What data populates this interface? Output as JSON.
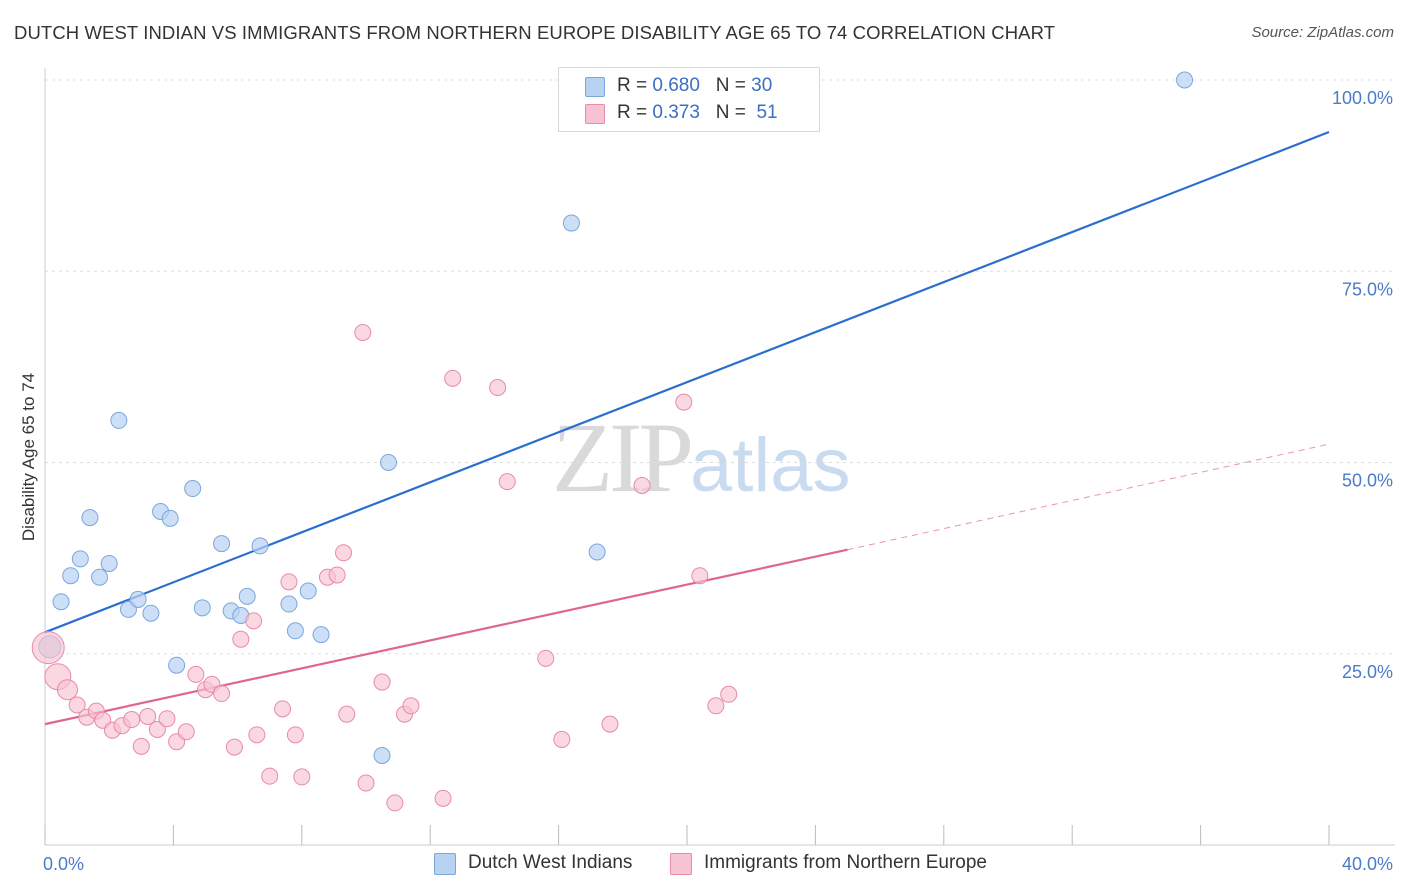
{
  "title": "DUTCH WEST INDIAN VS IMMIGRANTS FROM NORTHERN EUROPE DISABILITY AGE 65 TO 74 CORRELATION CHART",
  "source": "Source: ZipAtlas.com",
  "watermark": {
    "zip": "ZIP",
    "atlas": "atlas"
  },
  "legend": {
    "rows": [
      {
        "r_label": "R =",
        "r_value": "0.680",
        "n_label": "N =",
        "n_value": "30"
      },
      {
        "r_label": "R =",
        "r_value": "0.373",
        "n_label": "N =",
        "n_value": "51"
      }
    ]
  },
  "colors": {
    "blue_fill": "#b8d2f2",
    "blue_stroke": "#7aa6dd",
    "blue_line": "#2a6fcf",
    "pink_fill": "#f7c3d3",
    "pink_stroke": "#e88aa8",
    "pink_line": "#e0668f",
    "grid": "#dddddd"
  },
  "chart_data": {
    "type": "scatter",
    "title": "DUTCH WEST INDIAN VS IMMIGRANTS FROM NORTHERN EUROPE DISABILITY AGE 65 TO 74 CORRELATION CHART",
    "xlabel": "",
    "ylabel": "Disability Age 65 to 74",
    "xlim": [
      0,
      40
    ],
    "ylim": [
      0,
      100
    ],
    "x_tick_labels": [
      "0.0%",
      "40.0%"
    ],
    "y_ticks": [
      25,
      50,
      75,
      100
    ],
    "y_tick_labels": [
      "25.0%",
      "50.0%",
      "75.0%",
      "100.0%"
    ],
    "legend_position": "top-center",
    "series": [
      {
        "name": "Dutch West Indians",
        "r": 0.68,
        "n": 30,
        "trend": {
          "x0": 0,
          "y0": 27.8,
          "x1": 40,
          "y1": 93.2
        },
        "points": [
          [
            0.15,
            25.9
          ],
          [
            0.5,
            31.8
          ],
          [
            0.8,
            35.2
          ],
          [
            1.1,
            37.4
          ],
          [
            1.4,
            42.8
          ],
          [
            1.7,
            35.0
          ],
          [
            2.0,
            36.8
          ],
          [
            2.3,
            55.5
          ],
          [
            2.6,
            30.8
          ],
          [
            2.9,
            32.1
          ],
          [
            3.3,
            30.3
          ],
          [
            3.6,
            43.6
          ],
          [
            3.9,
            42.7
          ],
          [
            4.1,
            23.5
          ],
          [
            4.6,
            46.6
          ],
          [
            4.9,
            31.0
          ],
          [
            5.5,
            39.4
          ],
          [
            5.8,
            30.6
          ],
          [
            6.1,
            30.0
          ],
          [
            6.3,
            32.5
          ],
          [
            6.7,
            39.1
          ],
          [
            7.6,
            31.5
          ],
          [
            7.8,
            28.0
          ],
          [
            8.2,
            33.2
          ],
          [
            8.6,
            27.5
          ],
          [
            10.7,
            50.0
          ],
          [
            10.5,
            11.7
          ],
          [
            16.4,
            81.3
          ],
          [
            17.2,
            38.3
          ],
          [
            35.5,
            100.0
          ]
        ]
      },
      {
        "name": "Immigrants from Northern Europe",
        "r": 0.373,
        "n": 51,
        "trend": {
          "x0": 0,
          "y0": 15.8,
          "x1": 25,
          "y1": 38.6,
          "dash_x1": 40,
          "dash_y1": 52.4
        },
        "points": [
          [
            0.1,
            25.8
          ],
          [
            0.4,
            22.0
          ],
          [
            0.7,
            20.3
          ],
          [
            1.0,
            18.3
          ],
          [
            1.3,
            16.7
          ],
          [
            1.6,
            17.5
          ],
          [
            1.8,
            16.3
          ],
          [
            2.1,
            15.0
          ],
          [
            2.4,
            15.6
          ],
          [
            2.7,
            16.4
          ],
          [
            3.0,
            12.9
          ],
          [
            3.2,
            16.8
          ],
          [
            3.5,
            15.1
          ],
          [
            3.8,
            16.5
          ],
          [
            4.1,
            13.5
          ],
          [
            4.4,
            14.8
          ],
          [
            4.7,
            22.3
          ],
          [
            5.0,
            20.3
          ],
          [
            5.2,
            21.0
          ],
          [
            5.5,
            19.8
          ],
          [
            5.9,
            12.8
          ],
          [
            6.1,
            26.9
          ],
          [
            6.5,
            29.3
          ],
          [
            6.6,
            14.4
          ],
          [
            7.0,
            9.0
          ],
          [
            7.4,
            17.8
          ],
          [
            7.6,
            34.4
          ],
          [
            7.8,
            14.4
          ],
          [
            8.0,
            8.9
          ],
          [
            8.8,
            35.0
          ],
          [
            9.1,
            35.3
          ],
          [
            9.3,
            38.2
          ],
          [
            9.4,
            17.1
          ],
          [
            9.9,
            67.0
          ],
          [
            10.0,
            8.1
          ],
          [
            10.5,
            21.3
          ],
          [
            10.9,
            5.5
          ],
          [
            11.2,
            17.1
          ],
          [
            11.4,
            18.2
          ],
          [
            12.4,
            6.1
          ],
          [
            12.7,
            61.0
          ],
          [
            14.1,
            59.8
          ],
          [
            14.4,
            47.5
          ],
          [
            15.6,
            24.4
          ],
          [
            16.1,
            13.8
          ],
          [
            17.6,
            15.8
          ],
          [
            18.6,
            47.0
          ],
          [
            19.9,
            57.9
          ],
          [
            20.4,
            35.2
          ],
          [
            20.9,
            18.2
          ],
          [
            21.3,
            19.7
          ]
        ]
      }
    ]
  }
}
